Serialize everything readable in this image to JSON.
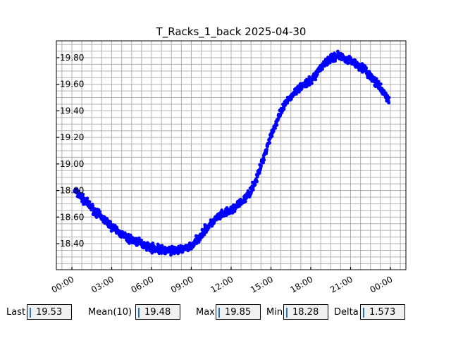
{
  "chart_data": {
    "type": "scatter",
    "title": "T_Racks_1_back 2025-04-30",
    "xlabel": "",
    "ylabel": "",
    "xlim_hours": [
      -1.17,
      25.17
    ],
    "ylim": [
      18.204,
      19.927
    ],
    "x_ticks": [
      {
        "h": 0,
        "label": "00:00"
      },
      {
        "h": 3,
        "label": "03:00"
      },
      {
        "h": 6,
        "label": "06:00"
      },
      {
        "h": 9,
        "label": "09:00"
      },
      {
        "h": 12,
        "label": "12:00"
      },
      {
        "h": 15,
        "label": "15:00"
      },
      {
        "h": 18,
        "label": "18:00"
      },
      {
        "h": 21,
        "label": "21:00"
      },
      {
        "h": 24,
        "label": "00:00"
      }
    ],
    "y_ticks": [
      {
        "v": 18.4,
        "label": "18.40"
      },
      {
        "v": 18.6,
        "label": "18.60"
      },
      {
        "v": 18.8,
        "label": "18.80"
      },
      {
        "v": 19.0,
        "label": "19.00"
      },
      {
        "v": 19.2,
        "label": "19.20"
      },
      {
        "v": 19.4,
        "label": "19.40"
      },
      {
        "v": 19.6,
        "label": "19.60"
      },
      {
        "v": 19.8,
        "label": "19.80"
      }
    ],
    "grid": true,
    "color": "#0000ff",
    "series": [
      {
        "name": "T_Racks_1_back",
        "x_hours": [
          0.2,
          1,
          2,
          3,
          4,
          5,
          6,
          7,
          8,
          9,
          10,
          11,
          12,
          13,
          13.5,
          14,
          15,
          16,
          17,
          18,
          19,
          20,
          21,
          22,
          23,
          23.9
        ],
        "values": [
          18.8,
          18.72,
          18.62,
          18.53,
          18.45,
          18.41,
          18.37,
          18.35,
          18.35,
          18.38,
          18.5,
          18.6,
          18.65,
          18.73,
          18.8,
          18.91,
          19.22,
          19.44,
          19.57,
          19.62,
          19.76,
          19.82,
          19.78,
          19.72,
          19.6,
          19.48
        ]
      }
    ]
  },
  "stats": {
    "last_label": "Last",
    "last": "19.53",
    "mean_label": "Mean(10)",
    "mean": "19.48",
    "max_label": "Max",
    "max": "19.85",
    "min_label": "Min",
    "min": "18.28",
    "delta_label": "Delta",
    "delta": "1.573"
  }
}
